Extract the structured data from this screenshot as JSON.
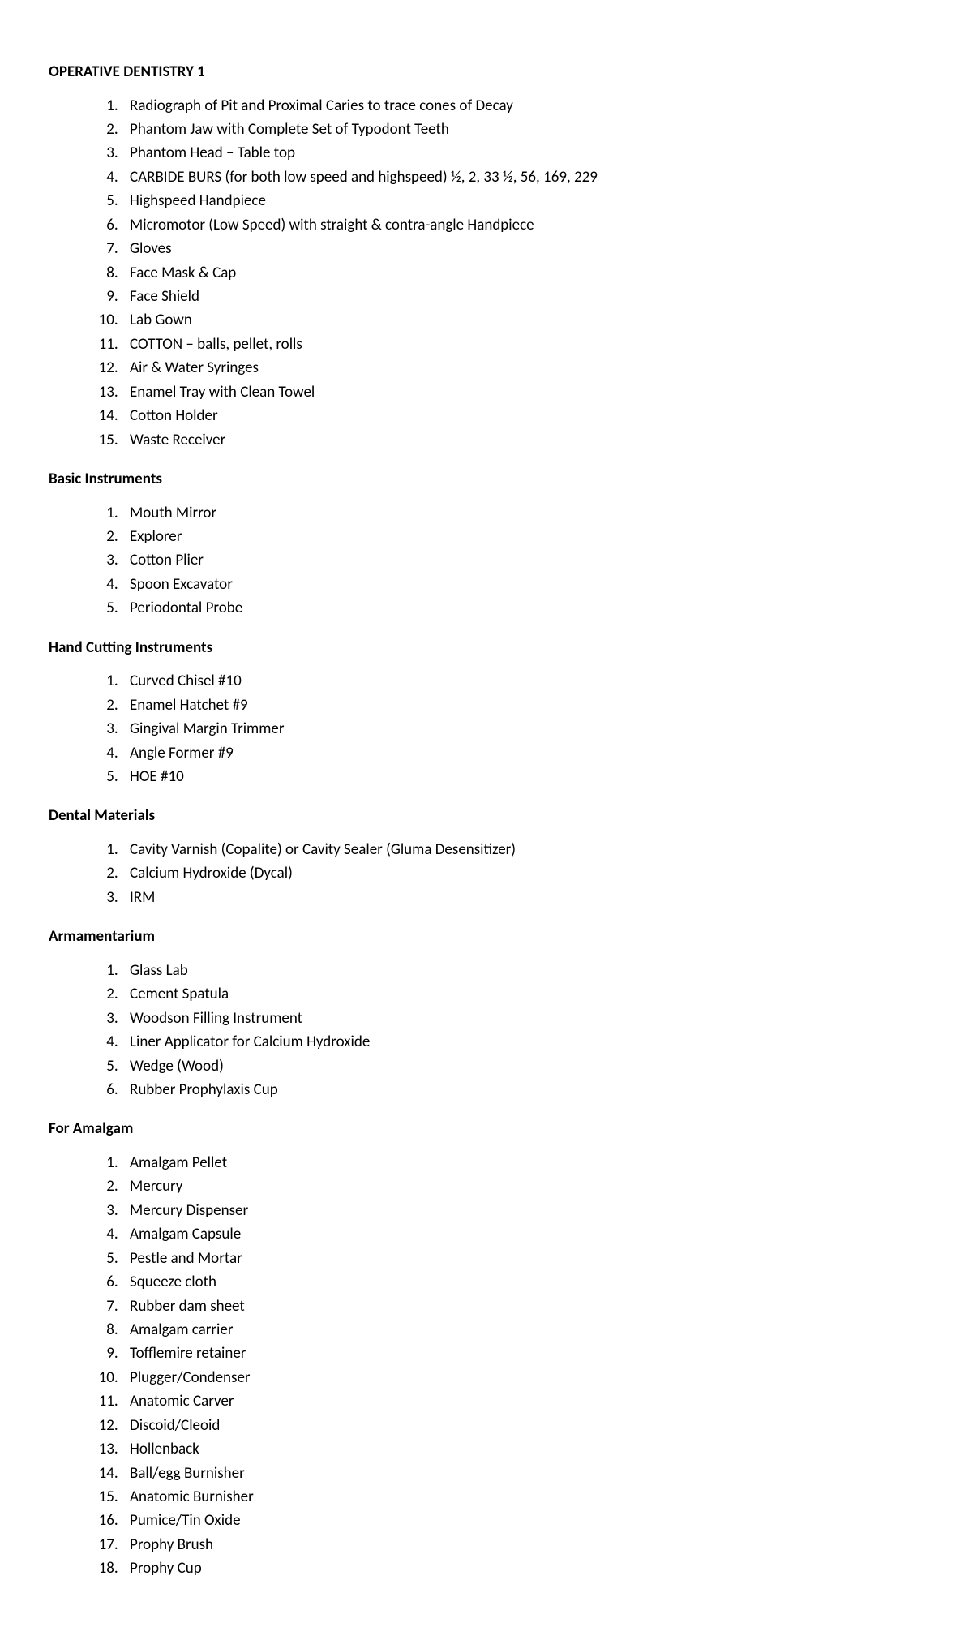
{
  "title": "OPERATIVE DENTISTRY 1",
  "sections": [
    {
      "heading": null,
      "items": [
        "Radiograph of Pit and Proximal Caries to trace cones of Decay",
        "Phantom Jaw with Complete Set of Typodont Teeth",
        "Phantom Head – Table top",
        "CARBIDE BURS (for both low speed and highspeed) ½, 2, 33 ½, 56, 169, 229",
        "Highspeed Handpiece",
        "Micromotor (Low Speed) with straight & contra-angle Handpiece",
        "Gloves",
        "Face Mask & Cap",
        "Face Shield",
        "Lab Gown",
        "COTTON – balls, pellet, rolls",
        "Air & Water Syringes",
        "Enamel Tray with Clean Towel",
        "Cotton Holder",
        "Waste Receiver"
      ]
    },
    {
      "heading": "Basic Instruments",
      "items": [
        "Mouth Mirror",
        "Explorer",
        "Cotton Plier",
        "Spoon Excavator",
        "Periodontal Probe"
      ]
    },
    {
      "heading": "Hand Cutting Instruments",
      "items": [
        "Curved Chisel #10",
        "Enamel Hatchet #9",
        "Gingival Margin Trimmer",
        "Angle Former #9",
        "HOE #10"
      ]
    },
    {
      "heading": "Dental Materials",
      "items": [
        "Cavity Varnish (Copalite) or Cavity Sealer (Gluma Desensitizer)",
        "Calcium Hydroxide (Dycal)",
        "IRM"
      ]
    },
    {
      "heading": "Armamentarium",
      "items": [
        "Glass Lab",
        "Cement Spatula",
        "Woodson Filling Instrument",
        "Liner Applicator for Calcium Hydroxide",
        "Wedge (Wood)",
        "Rubber Prophylaxis Cup"
      ]
    },
    {
      "heading": "For Amalgam",
      "items": [
        "Amalgam Pellet",
        "Mercury",
        "Mercury Dispenser",
        "Amalgam Capsule",
        "Pestle and Mortar",
        "Squeeze cloth",
        "Rubber dam sheet",
        "Amalgam carrier",
        "Tofflemire retainer",
        "Plugger/Condenser",
        "Anatomic Carver",
        "Discoid/Cleoid",
        "Hollenback",
        "Ball/egg Burnisher",
        "Anatomic Burnisher",
        "Pumice/Tin Oxide",
        "Prophy Brush",
        "Prophy Cup"
      ]
    }
  ]
}
